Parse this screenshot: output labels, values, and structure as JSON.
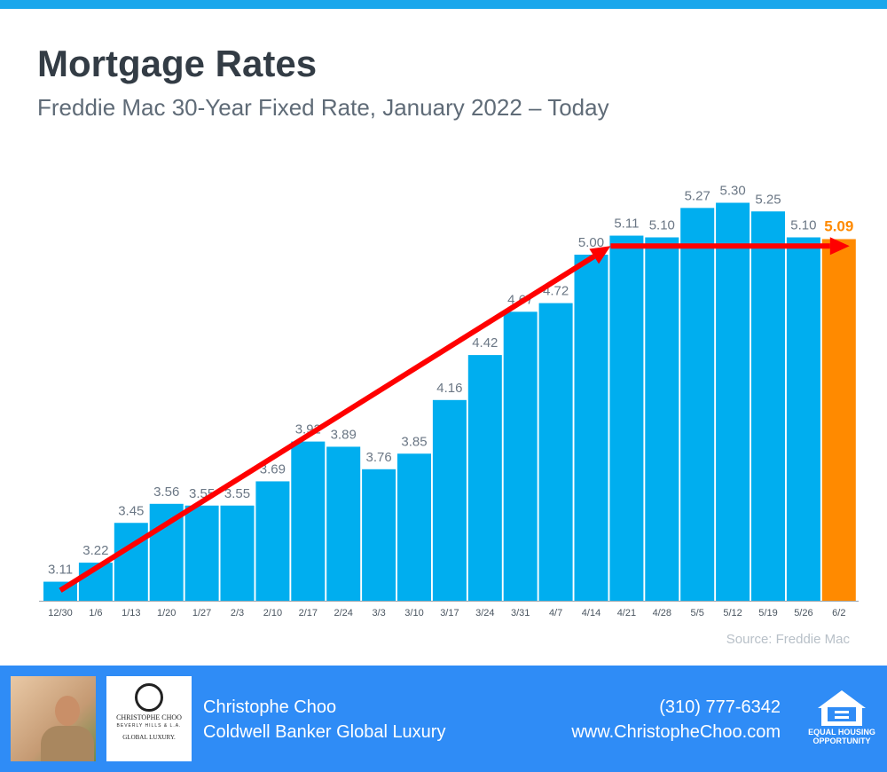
{
  "header": {
    "title": "Mortgage Rates",
    "subtitle": "Freddie Mac 30-Year Fixed Rate, January 2022 – Today"
  },
  "source": "Source: Freddie Mac",
  "colors": {
    "bar": "#00aeef",
    "highlight": "#ff8a00",
    "arrow": "#ff0000",
    "label": "#6b7785"
  },
  "chart_data": {
    "type": "bar",
    "title": "Mortgage Rates",
    "subtitle": "Freddie Mac 30-Year Fixed Rate, January 2022 – Today",
    "xlabel": "",
    "ylabel": "",
    "ylim": [
      3.0,
      5.4
    ],
    "grid": false,
    "categories": [
      "12/30",
      "1/6",
      "1/13",
      "1/20",
      "1/27",
      "2/3",
      "2/10",
      "2/17",
      "2/24",
      "3/3",
      "3/10",
      "3/17",
      "3/24",
      "3/31",
      "4/7",
      "4/14",
      "4/21",
      "4/28",
      "5/5",
      "5/12",
      "5/19",
      "5/26",
      "6/2"
    ],
    "values": [
      3.11,
      3.22,
      3.45,
      3.56,
      3.55,
      3.55,
      3.69,
      3.92,
      3.89,
      3.76,
      3.85,
      4.16,
      4.42,
      4.67,
      4.72,
      5.0,
      5.11,
      5.1,
      5.27,
      5.3,
      5.25,
      5.1,
      5.09
    ],
    "labels": [
      "3.11",
      "3.22",
      "3.45",
      "3.56",
      "3.55",
      "3.55",
      "3.69",
      "3.92",
      "3.89",
      "3.76",
      "3.85",
      "4.16",
      "4.42",
      "4.67",
      "4.72",
      "5.00",
      "5.11",
      "5.10",
      "5.27",
      "5.30",
      "5.25",
      "5.10",
      "5.09"
    ],
    "highlight_index": 22,
    "annotations": [
      {
        "type": "trend-arrow",
        "from_category": "12/30",
        "to_category": "4/21",
        "from_value": 3.06,
        "to_value": 5.05
      },
      {
        "type": "trend-arrow",
        "from_category": "4/21",
        "to_category": "6/2",
        "from_value": 5.05,
        "to_value": 5.05
      }
    ]
  },
  "footer": {
    "name": "Christophe Choo",
    "company": "Coldwell Banker Global Luxury",
    "phone": "(310) 777-6342",
    "website": "www.ChristopheChoo.com",
    "logo_text": "CHRISTOPHE CHOO",
    "logo_sub": "BEVERLY HILLS & L.A.",
    "logo_brand": "GLOBAL LUXURY.",
    "eho_text": "EQUAL HOUSING OPPORTUNITY"
  }
}
